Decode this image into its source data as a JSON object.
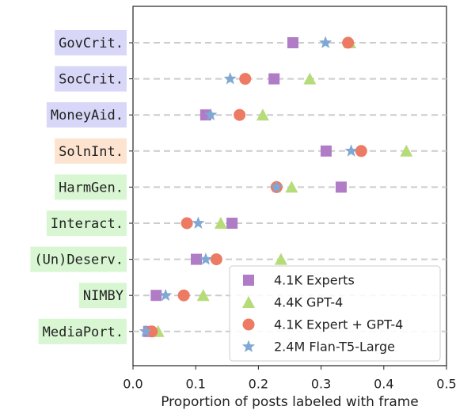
{
  "chart_data": {
    "type": "dot",
    "categories": [
      "GovCrit.",
      "SocCrit.",
      "MoneyAid.",
      "SolnInt.",
      "HarmGen.",
      "Interact.",
      "(Un)Deserv.",
      "NIMBY",
      "MediaPort."
    ],
    "category_colors": [
      "#d8d7f8",
      "#d8d7f8",
      "#d8d7f8",
      "#fde4d0",
      "#d9f6d3",
      "#d9f6d3",
      "#d9f6d3",
      "#d9f6d3",
      "#d9f6d3"
    ],
    "series": [
      {
        "name": "4.1K Experts",
        "color": "#b07cc6",
        "marker": "square",
        "values": [
          0.255,
          0.225,
          0.116,
          0.308,
          0.332,
          0.158,
          0.101,
          0.037,
          0.025
        ]
      },
      {
        "name": "4.4K GPT-4",
        "color": "#b6dc7a",
        "marker": "triangle",
        "values": [
          0.346,
          0.282,
          0.207,
          0.436,
          0.253,
          0.14,
          0.236,
          0.112,
          0.04
        ]
      },
      {
        "name": "4.1K Expert + GPT-4",
        "color": "#ed7a63",
        "marker": "circle",
        "values": [
          0.343,
          0.179,
          0.17,
          0.364,
          0.229,
          0.086,
          0.133,
          0.081,
          0.03
        ]
      },
      {
        "name": "2.4M Flan-T5-Large",
        "color": "#7fa8d4",
        "marker": "star",
        "values": [
          0.307,
          0.155,
          0.124,
          0.348,
          0.229,
          0.104,
          0.116,
          0.052,
          0.02
        ]
      }
    ],
    "x_label": "Proportion of posts labeled with frame",
    "xlim": [
      0.0,
      0.5
    ],
    "xticks": [
      {
        "value": 0,
        "label": "0.0"
      },
      0.1,
      0.2,
      0.3,
      0.4,
      0.5
    ],
    "grid": true,
    "legend": "lower right"
  }
}
